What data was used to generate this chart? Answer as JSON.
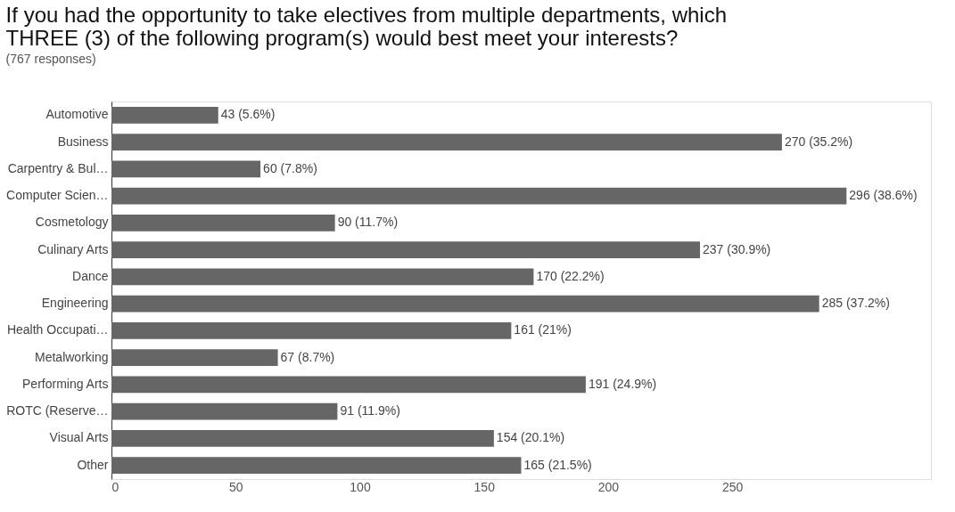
{
  "chart_data": {
    "type": "bar",
    "orientation": "horizontal",
    "title": [
      "If you had the opportunity to take electives from multiple departments, which",
      "THREE (3) of the following program(s) would best meet your interests?"
    ],
    "subtitle": "(767 responses)",
    "categories": [
      "Automotive",
      "Business",
      "Carpentry & Bul…",
      "Computer Scien…",
      "Cosmetology",
      "Culinary Arts",
      "Dance",
      "Engineering",
      "Health Occupati…",
      "Metalworking",
      "Performing Arts",
      "ROTC (Reserve…",
      "Visual Arts",
      "Other"
    ],
    "values": [
      43,
      270,
      60,
      296,
      90,
      237,
      170,
      285,
      161,
      67,
      191,
      91,
      154,
      165
    ],
    "value_labels": [
      "43 (5.6%)",
      "270 (35.2%)",
      "60 (7.8%)",
      "296 (38.6%)",
      "90 (11.7%)",
      "237 (30.9%)",
      "170 (22.2%)",
      "285 (37.2%)",
      "161 (21%)",
      "67 (8.7%)",
      "191 (24.9%)",
      "91 (11.9%)",
      "154 (20.1%)",
      "165 (21.5%)"
    ],
    "color": "#666666",
    "xlim": [
      0,
      330
    ],
    "xticks": [
      0,
      50,
      100,
      150,
      200,
      250
    ],
    "grid": false
  }
}
